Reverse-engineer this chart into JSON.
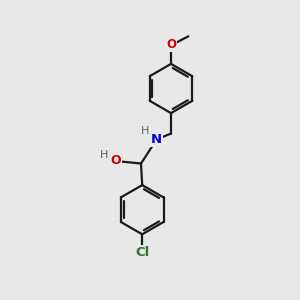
{
  "bg_color": "#e8e8e8",
  "line_color": "#1a1a1a",
  "bond_width": 1.6,
  "O_color": "#cc0000",
  "N_color": "#0000cc",
  "Cl_color": "#2d7a2d",
  "H_color": "#606060",
  "figsize": [
    3.0,
    3.0
  ],
  "dpi": 100,
  "xlim": [
    0,
    10
  ],
  "ylim": [
    0,
    10
  ]
}
